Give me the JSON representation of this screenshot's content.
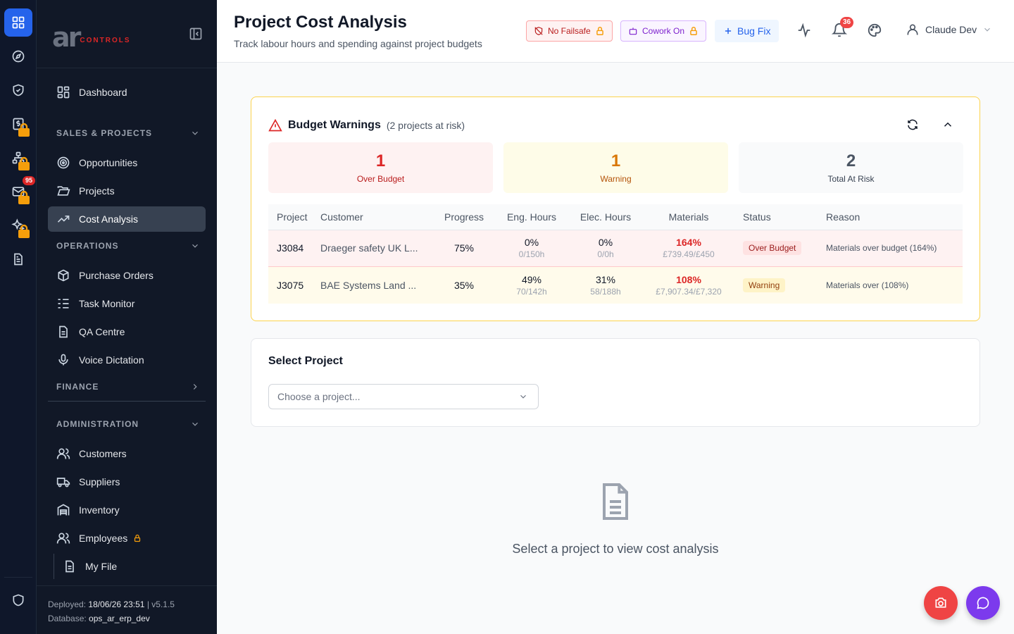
{
  "rail": {
    "items": [
      {
        "icon": "grid-icon",
        "active": true
      },
      {
        "icon": "compass-icon"
      },
      {
        "icon": "shield-check-icon"
      },
      {
        "icon": "dollar-doc-icon",
        "locked": true
      },
      {
        "icon": "org-chart-icon",
        "locked": true
      },
      {
        "icon": "mail-icon",
        "locked": true,
        "badge": "95"
      },
      {
        "icon": "sparkles-icon",
        "locked": true
      },
      {
        "icon": "document-icon"
      }
    ],
    "bottom_icon": "shield-icon"
  },
  "sidebar": {
    "logo": {
      "letters": "ar",
      "sub": "CONTROLS"
    },
    "dashboard": "Dashboard",
    "sections": {
      "sales": "SALES & PROJECTS",
      "operations": "OPERATIONS",
      "finance": "FINANCE",
      "admin": "ADMINISTRATION"
    },
    "items": {
      "opportunities": "Opportunities",
      "projects": "Projects",
      "cost_analysis": "Cost Analysis",
      "purchase_orders": "Purchase Orders",
      "task_monitor": "Task Monitor",
      "qa_centre": "QA Centre",
      "voice_dictation": "Voice Dictation",
      "customers": "Customers",
      "suppliers": "Suppliers",
      "inventory": "Inventory",
      "employees": "Employees",
      "my_file": "My File"
    },
    "footer": {
      "deployed_label": "Deployed:",
      "deployed_value": "18/06/26 23:51",
      "sep": "|",
      "version": "v5.1.5",
      "db_label": "Database:",
      "db_value": "ops_ar_erp_dev"
    }
  },
  "header": {
    "title": "Project Cost Analysis",
    "subtitle": "Track labour hours and spending against project budgets",
    "no_failsafe": "No Failsafe",
    "cowork": "Cowork On",
    "bug_fix": "Bug Fix",
    "notif_count": "36",
    "user": "Claude Dev"
  },
  "warnings": {
    "title": "Budget Warnings",
    "count_text": "(2 projects at risk)",
    "stats": [
      {
        "value": "1",
        "label": "Over Budget"
      },
      {
        "value": "1",
        "label": "Warning"
      },
      {
        "value": "2",
        "label": "Total At Risk"
      }
    ],
    "columns": [
      "Project",
      "Customer",
      "Progress",
      "Eng. Hours",
      "Elec. Hours",
      "Materials",
      "Status",
      "Reason"
    ],
    "rows": [
      {
        "project": "J3084",
        "customer": "Draeger safety UK L...",
        "progress": "75%",
        "eng_pct": "0%",
        "eng_sub": "0/150h",
        "elec_pct": "0%",
        "elec_sub": "0/0h",
        "mat_pct": "164%",
        "mat_sub": "£739.49/£450",
        "status": "Over Budget",
        "reason": "Materials over budget (164%)"
      },
      {
        "project": "J3075",
        "customer": "BAE Systems Land ...",
        "progress": "35%",
        "eng_pct": "49%",
        "eng_sub": "70/142h",
        "elec_pct": "31%",
        "elec_sub": "58/188h",
        "mat_pct": "108%",
        "mat_sub": "£7,907.34/£7,320",
        "status": "Warning",
        "reason": "Materials over (108%)"
      }
    ]
  },
  "select_project": {
    "title": "Select Project",
    "placeholder": "Choose a project..."
  },
  "empty_state": "Select a project to view cost analysis",
  "colors": {
    "accent": "#2563eb",
    "danger": "#dc2626",
    "warning": "#d97706",
    "chat": "#7c3aed"
  }
}
